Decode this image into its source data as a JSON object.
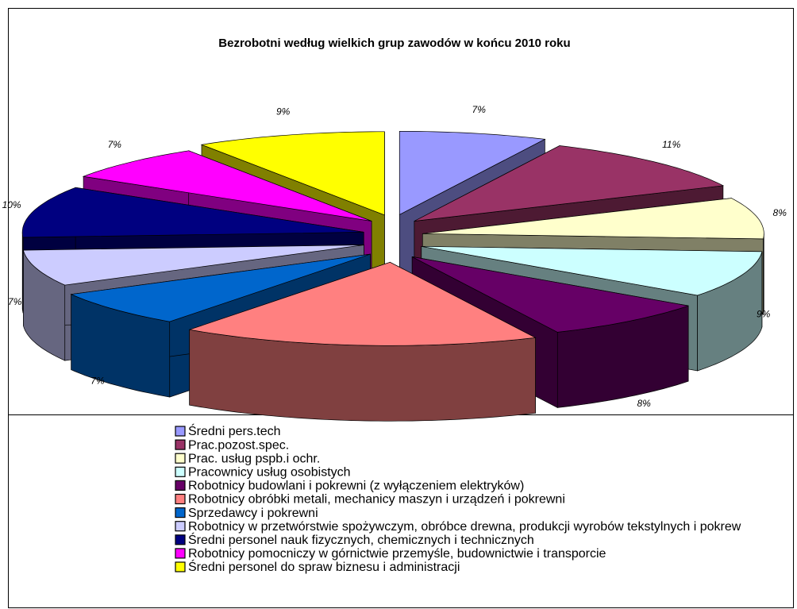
{
  "chart_data": {
    "type": "pie",
    "title": "Bezrobotni według wielkich grup zawodów w końcu 2010 roku",
    "categories": [
      "Średni pers.tech",
      "Prac.pozost.spec.",
      "Prac. usług pspb.i ochr.",
      "Pracownicy usług osobistych",
      "Robotnicy budowlani i pokrewni (z wyłączeniem elektryków)",
      "Robotnicy obróbki metali, mechanicy maszyn i urządzeń i pokrewni",
      "Sprzedawcy i pokrewni",
      "Robotnicy w przetwórstwie spożywczym, obróbce drewna, produkcji wyrobów tekstylnych i pokrew",
      "Średni personel nauk fizycznych, chemicznych i technicznych",
      "Robotnicy pomocniczy w górnictwie przemyśle, budownictwie i transporcie",
      "Średni personel do spraw  biznesu i administracji"
    ],
    "values": [
      7,
      11,
      8,
      9,
      8,
      17,
      7,
      7,
      10,
      7,
      9
    ],
    "value_labels": [
      "7%",
      "11%",
      "8%",
      "9%",
      "8%",
      null,
      "7%",
      "7%",
      "10%",
      "7%",
      "9%"
    ],
    "colors": [
      "#9999ff",
      "#993366",
      "#ffffcc",
      "#ccffff",
      "#660066",
      "#ff8080",
      "#0066cc",
      "#ccccff",
      "#000080",
      "#ff00ff",
      "#ffff00"
    ],
    "legend": "bottom"
  }
}
